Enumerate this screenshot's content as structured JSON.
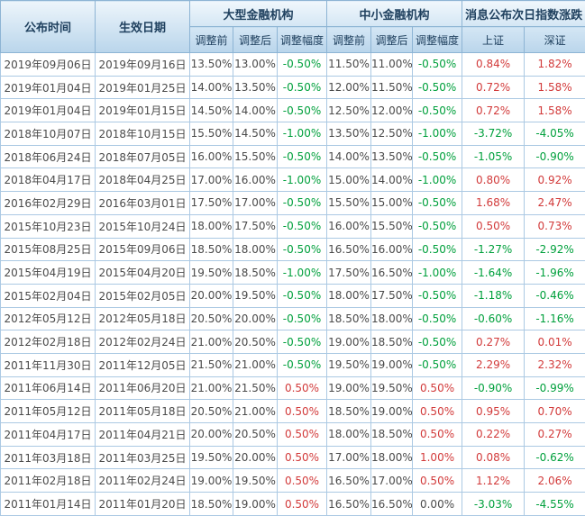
{
  "colors": {
    "positive_red": "#d23a3a",
    "negative_green": "#00a03c",
    "neutral_text": "#4a4a4a",
    "header_text": "#20415f",
    "header_gradient_top": "#edf5fb",
    "header_gradient_bottom": "#b9d5eb",
    "grid_border": "#abc9e3"
  },
  "chart_data": {
    "type": "table",
    "title": "",
    "column_groups": [
      {
        "label": "公布时间"
      },
      {
        "label": "生效日期"
      },
      {
        "label": "大型金融机构"
      },
      {
        "label": "中小金融机构"
      },
      {
        "label": "消息公布次日指数涨跌"
      }
    ],
    "sub_columns": [
      "调整前",
      "调整后",
      "调整幅度",
      "调整前",
      "调整后",
      "调整幅度",
      "上证",
      "深证"
    ],
    "rows": [
      [
        "2019年09月06日",
        "2019年09月16日",
        "13.50%",
        "13.00%",
        "-0.50%",
        "11.50%",
        "11.00%",
        "-0.50%",
        "0.84%",
        "1.82%"
      ],
      [
        "2019年01月04日",
        "2019年01月25日",
        "14.00%",
        "13.50%",
        "-0.50%",
        "12.00%",
        "11.50%",
        "-0.50%",
        "0.72%",
        "1.58%"
      ],
      [
        "2019年01月04日",
        "2019年01月15日",
        "14.50%",
        "14.00%",
        "-0.50%",
        "12.50%",
        "12.00%",
        "-0.50%",
        "0.72%",
        "1.58%"
      ],
      [
        "2018年10月07日",
        "2018年10月15日",
        "15.50%",
        "14.50%",
        "-1.00%",
        "13.50%",
        "12.50%",
        "-1.00%",
        "-3.72%",
        "-4.05%"
      ],
      [
        "2018年06月24日",
        "2018年07月05日",
        "16.00%",
        "15.50%",
        "-0.50%",
        "14.00%",
        "13.50%",
        "-0.50%",
        "-1.05%",
        "-0.90%"
      ],
      [
        "2018年04月17日",
        "2018年04月25日",
        "17.00%",
        "16.00%",
        "-1.00%",
        "15.00%",
        "14.00%",
        "-1.00%",
        "0.80%",
        "0.92%"
      ],
      [
        "2016年02月29日",
        "2016年03月01日",
        "17.50%",
        "17.00%",
        "-0.50%",
        "15.50%",
        "15.00%",
        "-0.50%",
        "1.68%",
        "2.47%"
      ],
      [
        "2015年10月23日",
        "2015年10月24日",
        "18.00%",
        "17.50%",
        "-0.50%",
        "16.00%",
        "15.50%",
        "-0.50%",
        "0.50%",
        "0.73%"
      ],
      [
        "2015年08月25日",
        "2015年09月06日",
        "18.50%",
        "18.00%",
        "-0.50%",
        "16.50%",
        "16.00%",
        "-0.50%",
        "-1.27%",
        "-2.92%"
      ],
      [
        "2015年04月19日",
        "2015年04月20日",
        "19.50%",
        "18.50%",
        "-1.00%",
        "17.50%",
        "16.50%",
        "-1.00%",
        "-1.64%",
        "-1.96%"
      ],
      [
        "2015年02月04日",
        "2015年02月05日",
        "20.00%",
        "19.50%",
        "-0.50%",
        "18.00%",
        "17.50%",
        "-0.50%",
        "-1.18%",
        "-0.46%"
      ],
      [
        "2012年05月12日",
        "2012年05月18日",
        "20.50%",
        "20.00%",
        "-0.50%",
        "18.50%",
        "18.00%",
        "-0.50%",
        "-0.60%",
        "-1.16%"
      ],
      [
        "2012年02月18日",
        "2012年02月24日",
        "21.00%",
        "20.50%",
        "-0.50%",
        "19.00%",
        "18.50%",
        "-0.50%",
        "0.27%",
        "0.01%"
      ],
      [
        "2011年11月30日",
        "2011年12月05日",
        "21.50%",
        "21.00%",
        "-0.50%",
        "19.50%",
        "19.00%",
        "-0.50%",
        "2.29%",
        "2.32%"
      ],
      [
        "2011年06月14日",
        "2011年06月20日",
        "21.00%",
        "21.50%",
        "0.50%",
        "19.00%",
        "19.50%",
        "0.50%",
        "-0.90%",
        "-0.99%"
      ],
      [
        "2011年05月12日",
        "2011年05月18日",
        "20.50%",
        "21.00%",
        "0.50%",
        "18.50%",
        "19.00%",
        "0.50%",
        "0.95%",
        "0.70%"
      ],
      [
        "2011年04月17日",
        "2011年04月21日",
        "20.00%",
        "20.50%",
        "0.50%",
        "18.00%",
        "18.50%",
        "0.50%",
        "0.22%",
        "0.27%"
      ],
      [
        "2011年03月18日",
        "2011年03月25日",
        "19.50%",
        "20.00%",
        "0.50%",
        "17.00%",
        "18.00%",
        "1.00%",
        "0.08%",
        "-0.62%"
      ],
      [
        "2011年02月18日",
        "2011年02月24日",
        "19.00%",
        "19.50%",
        "0.50%",
        "16.50%",
        "17.00%",
        "0.50%",
        "1.12%",
        "2.06%"
      ],
      [
        "2011年01月14日",
        "2011年01月20日",
        "18.50%",
        "19.00%",
        "0.50%",
        "16.50%",
        "16.50%",
        "0.00%",
        "-3.03%",
        "-4.55%"
      ]
    ]
  }
}
